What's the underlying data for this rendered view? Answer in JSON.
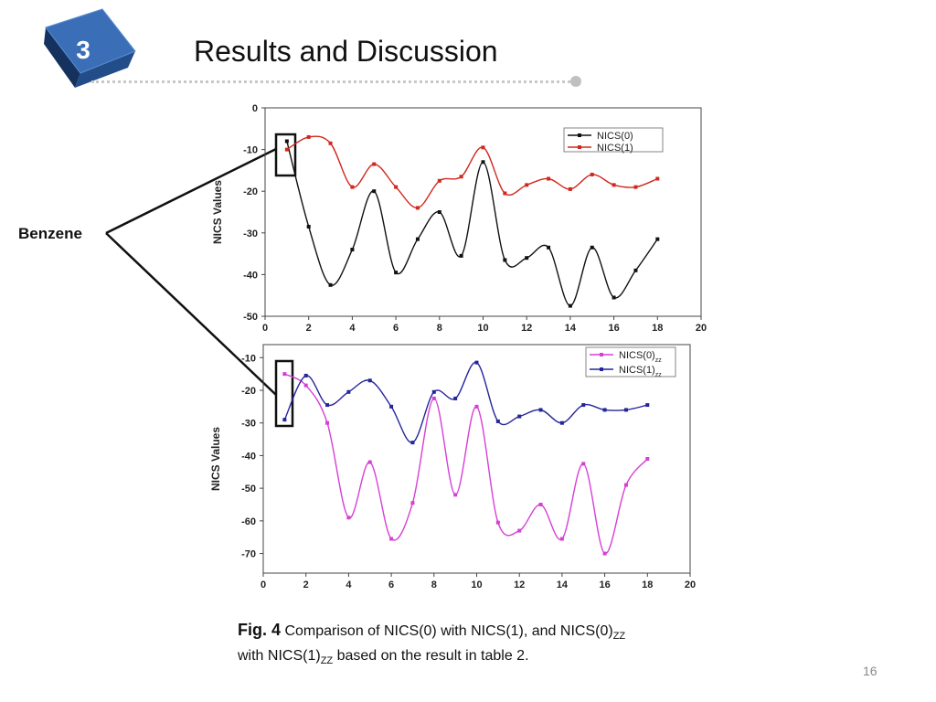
{
  "slide": {
    "number": "3",
    "title": "Results and Discussion",
    "page": "16",
    "label": "Benzene",
    "accent": "#1f4e8c"
  },
  "caption": {
    "fig": "Fig. 4",
    "t1": "Comparison of NICS(0) with NICS(1), and NICS(0)",
    "sub1": "ZZ",
    "t2": "with NICS(1)",
    "sub2": "ZZ",
    "t3": "based on the result in table 2."
  },
  "chart_data": [
    {
      "type": "line",
      "title": "",
      "xlabel": "",
      "ylabel": "NICS  Values",
      "xlim": [
        0,
        20
      ],
      "ylim": [
        -50,
        0
      ],
      "xticks": [
        0,
        2,
        4,
        6,
        8,
        10,
        12,
        14,
        16,
        18,
        20
      ],
      "yticks": [
        0,
        -10,
        -20,
        -30,
        -40,
        -50
      ],
      "legend": "top-right",
      "x": [
        1,
        2,
        3,
        4,
        5,
        6,
        7,
        8,
        9,
        10,
        11,
        12,
        13,
        14,
        15,
        16,
        17,
        18
      ],
      "series": [
        {
          "name": "NICS(0)",
          "color": "#111111",
          "values": [
            -8,
            -28.5,
            -42.5,
            -34,
            -20,
            -39.5,
            -31.5,
            -25,
            -35.5,
            -13,
            -36.5,
            -36,
            -33.5,
            -47.5,
            -33.5,
            -45.5,
            -39,
            -31.5
          ]
        },
        {
          "name": "NICS(1)",
          "color": "#d0281e",
          "values": [
            -10,
            -7,
            -8.5,
            -19,
            -13.5,
            -19,
            -24,
            -17.5,
            -16.5,
            -9.5,
            -20.5,
            -18.5,
            -17,
            -19.5,
            -16,
            -18.5,
            -19,
            -17
          ]
        }
      ]
    },
    {
      "type": "line",
      "title": "",
      "xlabel": "",
      "ylabel": "NICS Values",
      "xlim": [
        0,
        20
      ],
      "ylim": [
        -76,
        -6
      ],
      "xticks": [
        0,
        2,
        4,
        6,
        8,
        10,
        12,
        14,
        16,
        18,
        20
      ],
      "yticks": [
        -10,
        -20,
        -30,
        -40,
        -50,
        -60,
        -70
      ],
      "legend": "top-right",
      "x": [
        1,
        2,
        3,
        4,
        5,
        6,
        7,
        8,
        9,
        10,
        11,
        12,
        13,
        14,
        15,
        16,
        17,
        18
      ],
      "series": [
        {
          "name": "NICS(0)",
          "name_sub": "zz",
          "color": "#d63fd6",
          "values": [
            -15,
            -18.5,
            -30,
            -59,
            -42,
            -65.5,
            -54.5,
            -22.5,
            -52,
            -25,
            -60.5,
            -63,
            -55,
            -65.5,
            -42.5,
            -70,
            -49,
            -41
          ]
        },
        {
          "name": "NICS(1)",
          "name_sub": "zz",
          "color": "#25259c",
          "values": [
            -29,
            -15.5,
            -24.5,
            -20.5,
            -17,
            -25,
            -36,
            -20.5,
            -22.5,
            -11.5,
            -29.5,
            -28,
            -26,
            -30,
            -24.5,
            -26,
            -26,
            -24.5
          ]
        }
      ]
    }
  ]
}
